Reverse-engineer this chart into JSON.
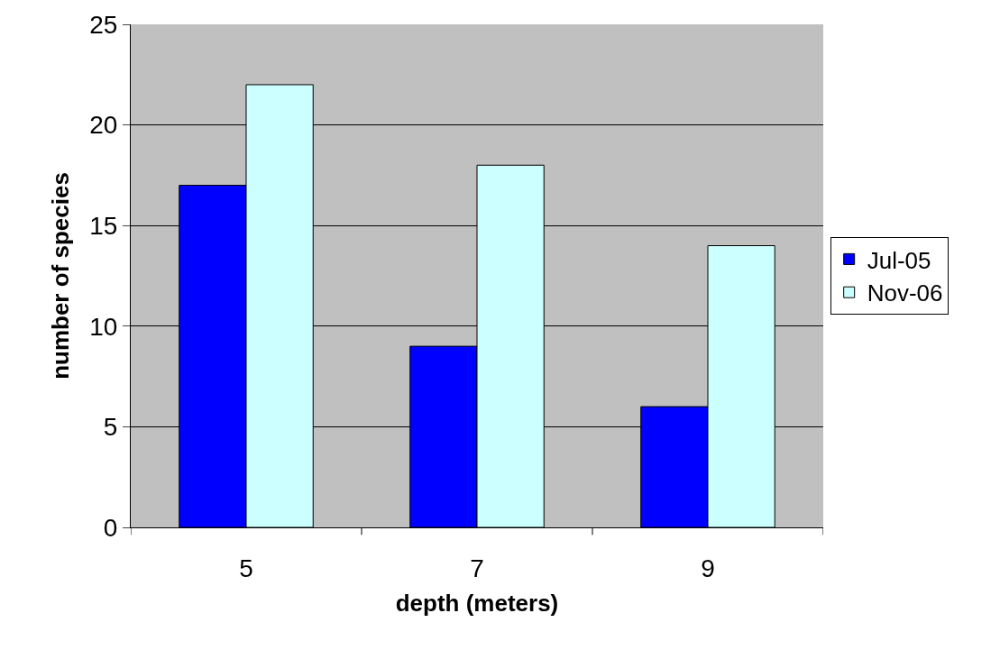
{
  "chart_data": {
    "type": "bar",
    "xlabel": "depth (meters)",
    "ylabel": "number of species",
    "categories": [
      "5",
      "7",
      "9"
    ],
    "series": [
      {
        "name": "Jul-05",
        "color": "#0000ff",
        "values": [
          17,
          9,
          6
        ]
      },
      {
        "name": "Nov-06",
        "color": "#ccffff",
        "values": [
          22,
          18,
          14
        ]
      }
    ],
    "ylim": [
      0,
      25
    ],
    "yticks": [
      0,
      5,
      10,
      15,
      20,
      25
    ],
    "grid": "y",
    "legend": "right"
  }
}
